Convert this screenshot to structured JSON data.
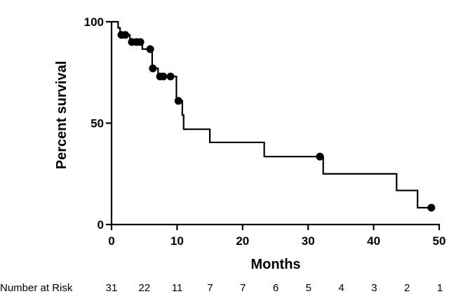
{
  "chart_data": {
    "type": "line",
    "subtype": "kaplan-meier",
    "title": "",
    "xlabel": "Months",
    "ylabel": "Percent survival",
    "xlim": [
      0,
      50
    ],
    "ylim": [
      0,
      100
    ],
    "xticks": [
      0,
      10,
      20,
      30,
      40,
      50
    ],
    "yticks": [
      0,
      50,
      100
    ],
    "grid": false,
    "series": [
      {
        "line_color": "#000000",
        "steps": [
          {
            "x": 0,
            "y": 100
          },
          {
            "x": 1.0,
            "y": 97
          },
          {
            "x": 1.3,
            "y": 93.5
          },
          {
            "x": 2.8,
            "y": 90
          },
          {
            "x": 4.7,
            "y": 86.5
          },
          {
            "x": 6.2,
            "y": 77
          },
          {
            "x": 7.1,
            "y": 73
          },
          {
            "x": 9.9,
            "y": 61
          },
          {
            "x": 10.8,
            "y": 54
          },
          {
            "x": 11.0,
            "y": 47
          },
          {
            "x": 15.0,
            "y": 40.5
          },
          {
            "x": 23.3,
            "y": 33.5
          },
          {
            "x": 32.3,
            "y": 25
          },
          {
            "x": 43.5,
            "y": 16.8
          },
          {
            "x": 46.7,
            "y": 8.3
          },
          {
            "x": 48.9,
            "y": 8.3
          }
        ],
        "censored": [
          {
            "x": 1.5,
            "y": 93.5
          },
          {
            "x": 2.1,
            "y": 93.5
          },
          {
            "x": 3.1,
            "y": 90
          },
          {
            "x": 3.8,
            "y": 90
          },
          {
            "x": 4.4,
            "y": 90
          },
          {
            "x": 5.9,
            "y": 86.5
          },
          {
            "x": 6.3,
            "y": 77
          },
          {
            "x": 7.4,
            "y": 73
          },
          {
            "x": 7.9,
            "y": 73
          },
          {
            "x": 9.0,
            "y": 73
          },
          {
            "x": 10.2,
            "y": 61
          },
          {
            "x": 31.8,
            "y": 33.5
          },
          {
            "x": 48.8,
            "y": 8.3
          }
        ]
      }
    ],
    "risk_table": {
      "label": "Number at Risk",
      "counts": [
        "31",
        "22",
        "11",
        "7",
        "7",
        "6",
        "5",
        "4",
        "3",
        "2",
        "1"
      ]
    }
  }
}
